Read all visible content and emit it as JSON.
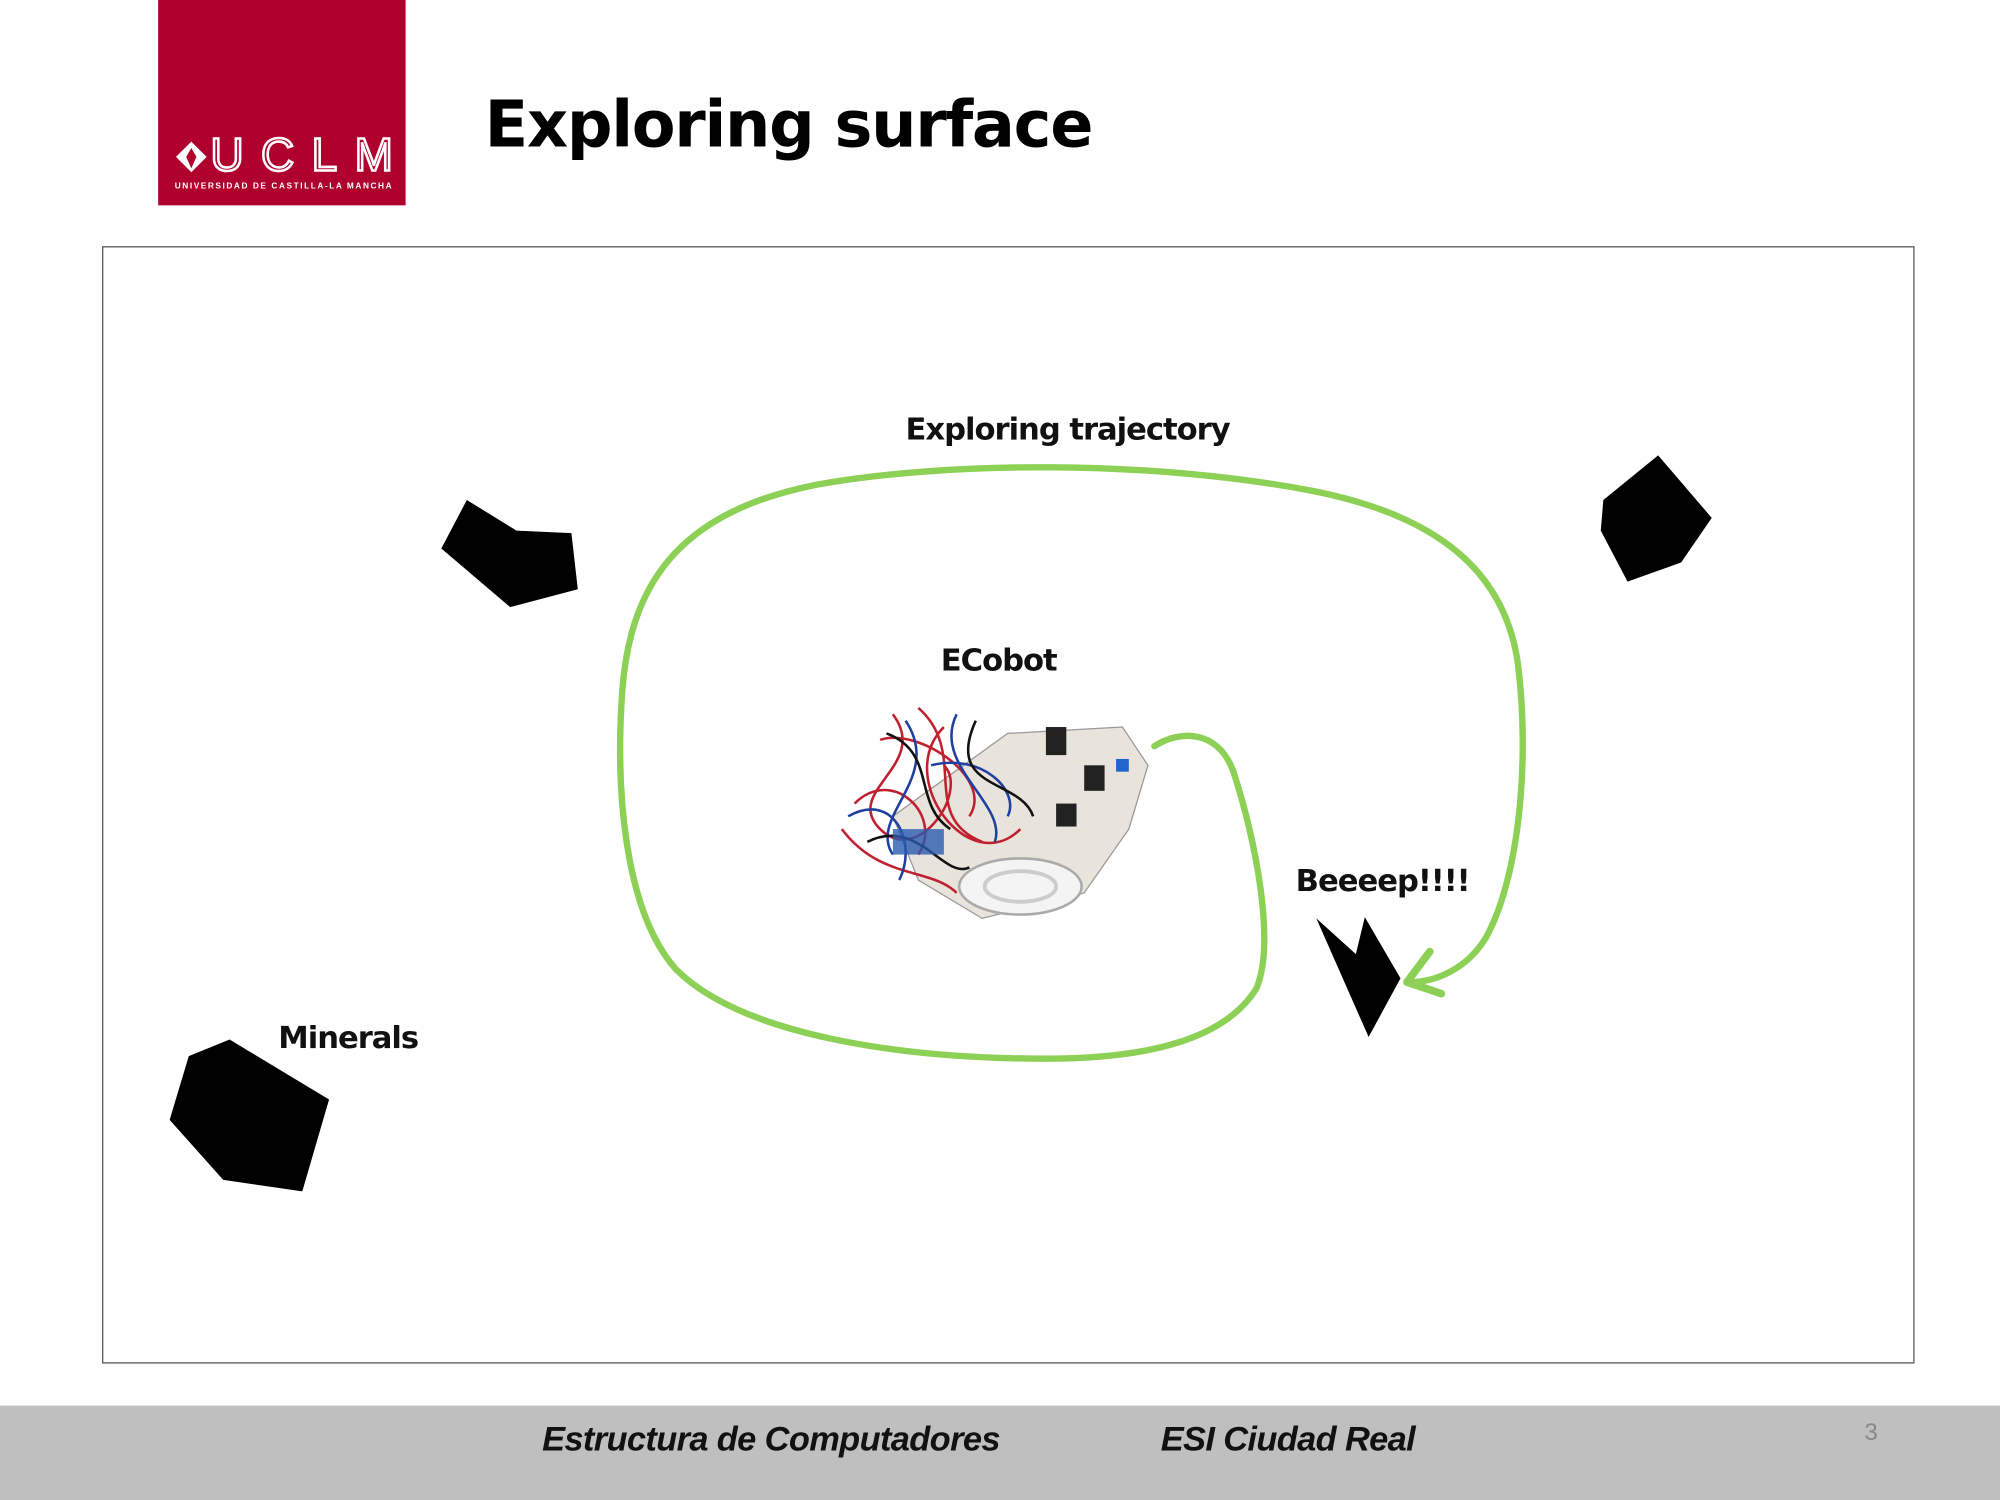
{
  "header": {
    "logo_text": "UCLM",
    "logo_subtext": "UNIVERSIDAD DE CASTILLA-LA MANCHA",
    "title": "Exploring surface"
  },
  "figure": {
    "trajectory_label": "Exploring trajectory",
    "robot_label": "ECobot",
    "alert_label": "Beeeep!!!!",
    "minerals_label": "Minerals"
  },
  "footer": {
    "course": "Estructura de Computadores",
    "school": "ESI Ciudad Real",
    "page_number": 3
  }
}
